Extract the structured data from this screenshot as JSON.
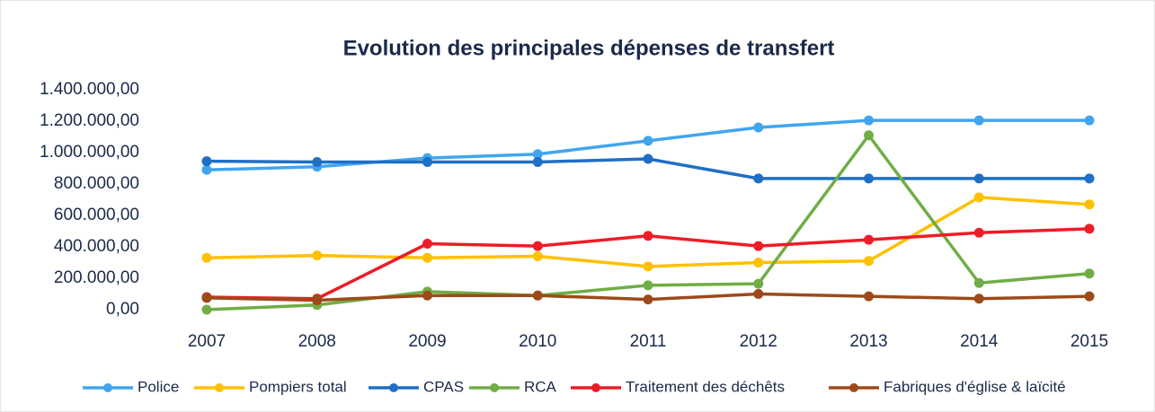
{
  "chart_data": {
    "type": "line",
    "title": "Evolution des principales dépenses de transfert",
    "categories": [
      "2007",
      "2008",
      "2009",
      "2010",
      "2011",
      "2012",
      "2013",
      "2014",
      "2015"
    ],
    "series": [
      {
        "name": "Police",
        "color": "#41a5ee",
        "values": [
          890000,
          910000,
          965000,
          990000,
          1075000,
          1160000,
          1205000,
          1205000,
          1205000
        ]
      },
      {
        "name": "Pompiers total",
        "color": "#ffc000",
        "values": [
          330000,
          345000,
          330000,
          340000,
          275000,
          300000,
          310000,
          715000,
          670000
        ]
      },
      {
        "name": "CPAS",
        "color": "#1f6fc5",
        "values": [
          945000,
          940000,
          940000,
          940000,
          960000,
          835000,
          835000,
          835000,
          835000
        ]
      },
      {
        "name": "RCA",
        "color": "#70ad47",
        "values": [
          0,
          30000,
          115000,
          90000,
          155000,
          165000,
          1110000,
          170000,
          230000
        ]
      },
      {
        "name": "Traitement des déchêts",
        "color": "#ee1c25",
        "values": [
          80000,
          70000,
          420000,
          405000,
          470000,
          405000,
          445000,
          490000,
          515000
        ]
      },
      {
        "name": "Fabriques d'église & laïcité",
        "color": "#9c4a1a",
        "values": [
          75000,
          60000,
          90000,
          90000,
          65000,
          100000,
          85000,
          70000,
          85000
        ]
      }
    ],
    "ylim": [
      0,
      1400000
    ],
    "yticks": [
      {
        "value": 0,
        "label": "0,00"
      },
      {
        "value": 200000,
        "label": "200.000,00"
      },
      {
        "value": 400000,
        "label": "400.000,00"
      },
      {
        "value": 600000,
        "label": "600.000,00"
      },
      {
        "value": 800000,
        "label": "800.000,00"
      },
      {
        "value": 1000000,
        "label": "1.000.000,00"
      },
      {
        "value": 1200000,
        "label": "1.200.000,00"
      },
      {
        "value": 1400000,
        "label": "1.400.000,00"
      }
    ],
    "grid": false,
    "legend": "bottom"
  }
}
